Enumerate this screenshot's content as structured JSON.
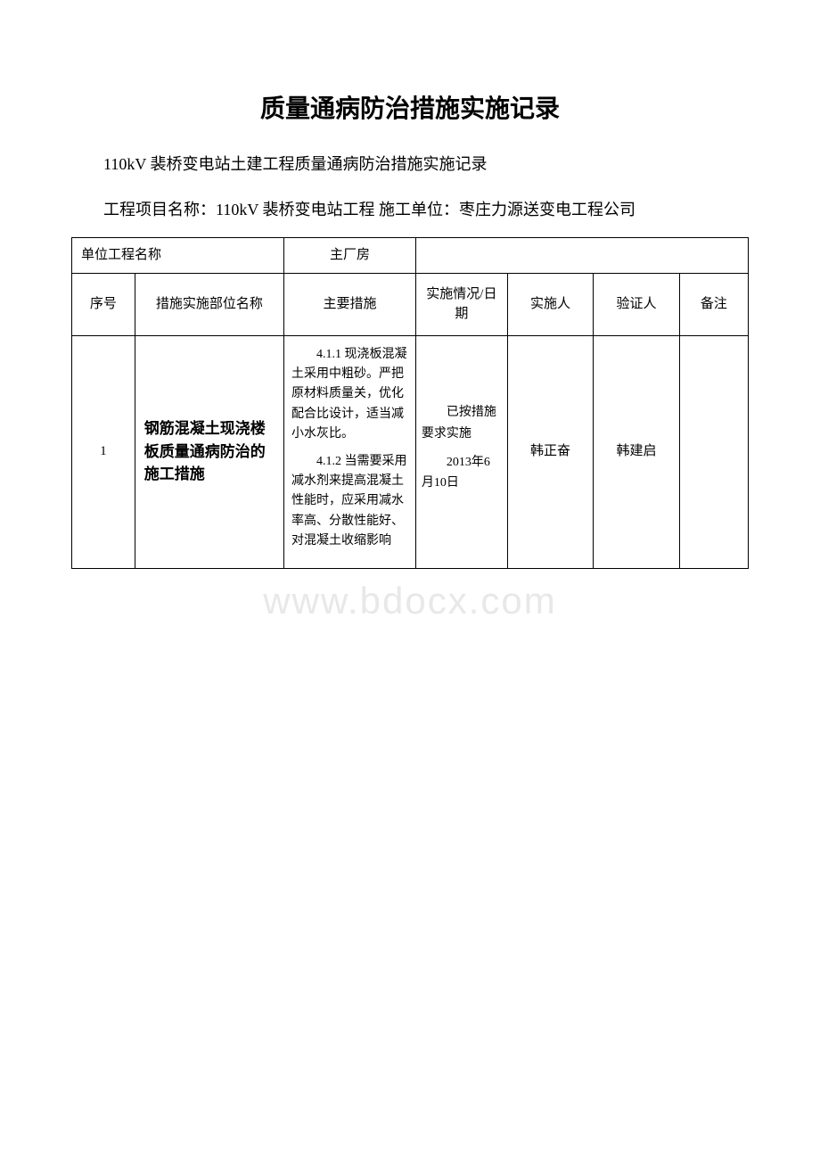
{
  "title": "质量通病防治措施实施记录",
  "subtitle": "110kV 裴桥变电站土建工程质量通病防治措施实施记录",
  "project_info": "工程项目名称：110kV 裴桥变电站工程 施工单位：枣庄力源送变电工程公司",
  "watermark": "www.bdocx.com",
  "unit_row": {
    "label": "单位工程名称",
    "value": "主厂房"
  },
  "headers": {
    "seq": "序号",
    "dept": "措施实施部位名称",
    "measure": "主要措施",
    "status": "实施情况/日期",
    "person": "实施人",
    "verify": "验证人",
    "remark": "备注"
  },
  "rows": [
    {
      "seq": "1",
      "dept": "钢筋混凝土现浇楼板质量通病防治的施工措施",
      "measure_p1": "4.1.1 现浇板混凝土采用中粗砂。严把原材料质量关，优化配合比设计，适当减小水灰比。",
      "measure_p2": "4.1.2 当需要采用减水剂来提高混凝土性能时，应采用减水率高、分散性能好、对混凝土收缩影响",
      "status_p1": "已按措施要求实施",
      "status_p2": "2013年6月10日",
      "person": "韩正奋",
      "verify": "韩建启",
      "remark": ""
    }
  ]
}
